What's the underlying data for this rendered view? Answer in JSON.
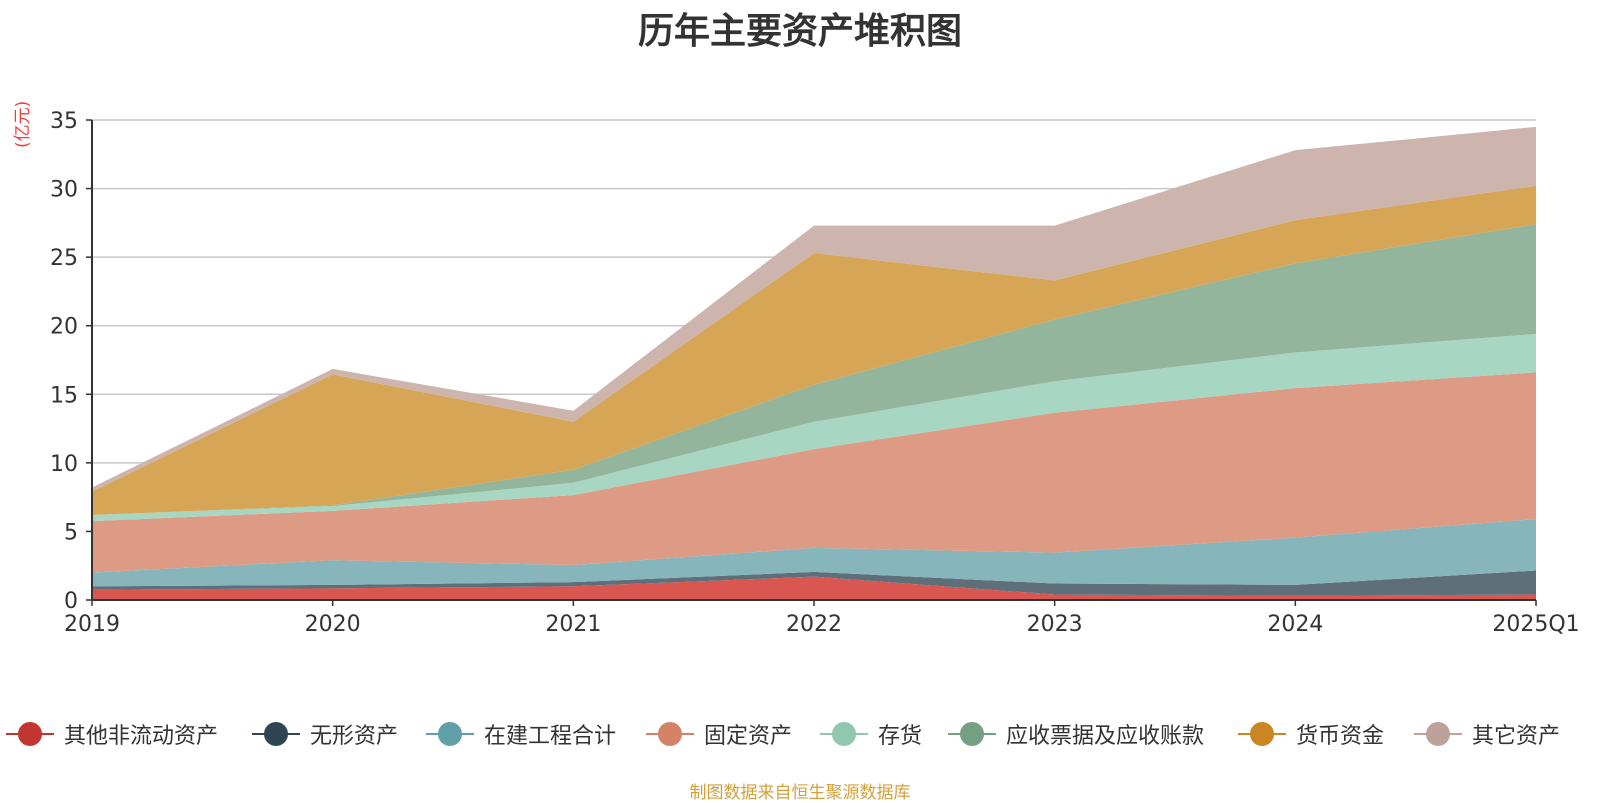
{
  "chart_data": {
    "type": "area",
    "title": "历年主要资产堆积图",
    "unit_label": "(亿元)",
    "categories": [
      "2019",
      "2020",
      "2021",
      "2022",
      "2023",
      "2024",
      "2025Q1"
    ],
    "ylim": [
      0,
      35
    ],
    "yticks": [
      0,
      5,
      10,
      15,
      20,
      25,
      30,
      35
    ],
    "grid": true,
    "stacked": true,
    "legend_position": "bottom",
    "series": [
      {
        "name": "其他非流动资产",
        "color": "#d95750",
        "legend_color": "#c23531",
        "values": [
          0.75,
          0.85,
          1.0,
          1.7,
          0.4,
          0.3,
          0.4
        ]
      },
      {
        "name": "无形资产",
        "color": "#5e6f7a",
        "legend_color": "#2f4554",
        "values": [
          0.25,
          0.25,
          0.3,
          0.35,
          0.8,
          0.8,
          1.75
        ]
      },
      {
        "name": "在建工程合计",
        "color": "#86b5bb",
        "legend_color": "#61a0a8",
        "values": [
          1.0,
          1.8,
          1.25,
          1.75,
          2.25,
          3.45,
          3.75
        ]
      },
      {
        "name": "固定资产",
        "color": "#dd9b85",
        "legend_color": "#d48265",
        "values": [
          3.75,
          3.6,
          5.1,
          7.2,
          10.2,
          10.9,
          10.7
        ]
      },
      {
        "name": "存货",
        "color": "#a7d6c2",
        "legend_color": "#91c7ae",
        "values": [
          0.45,
          0.35,
          0.9,
          2.0,
          2.3,
          2.6,
          2.8
        ]
      },
      {
        "name": "应收票据及应收账款",
        "color": "#93b59c",
        "legend_color": "#749f83",
        "values": [
          0.0,
          0.05,
          0.95,
          2.7,
          4.5,
          6.5,
          8.0
        ]
      },
      {
        "name": "货币资金",
        "color": "#d7a556",
        "legend_color": "#ca8622",
        "values": [
          1.7,
          9.55,
          3.5,
          9.6,
          2.85,
          3.15,
          2.8
        ]
      },
      {
        "name": "其它资产",
        "color": "#cdb5ae",
        "legend_color": "#bda29a",
        "values": [
          0.3,
          0.4,
          0.8,
          2.0,
          4.0,
          5.1,
          4.3
        ]
      }
    ]
  },
  "source_note": "制图数据来自恒生聚源数据库"
}
